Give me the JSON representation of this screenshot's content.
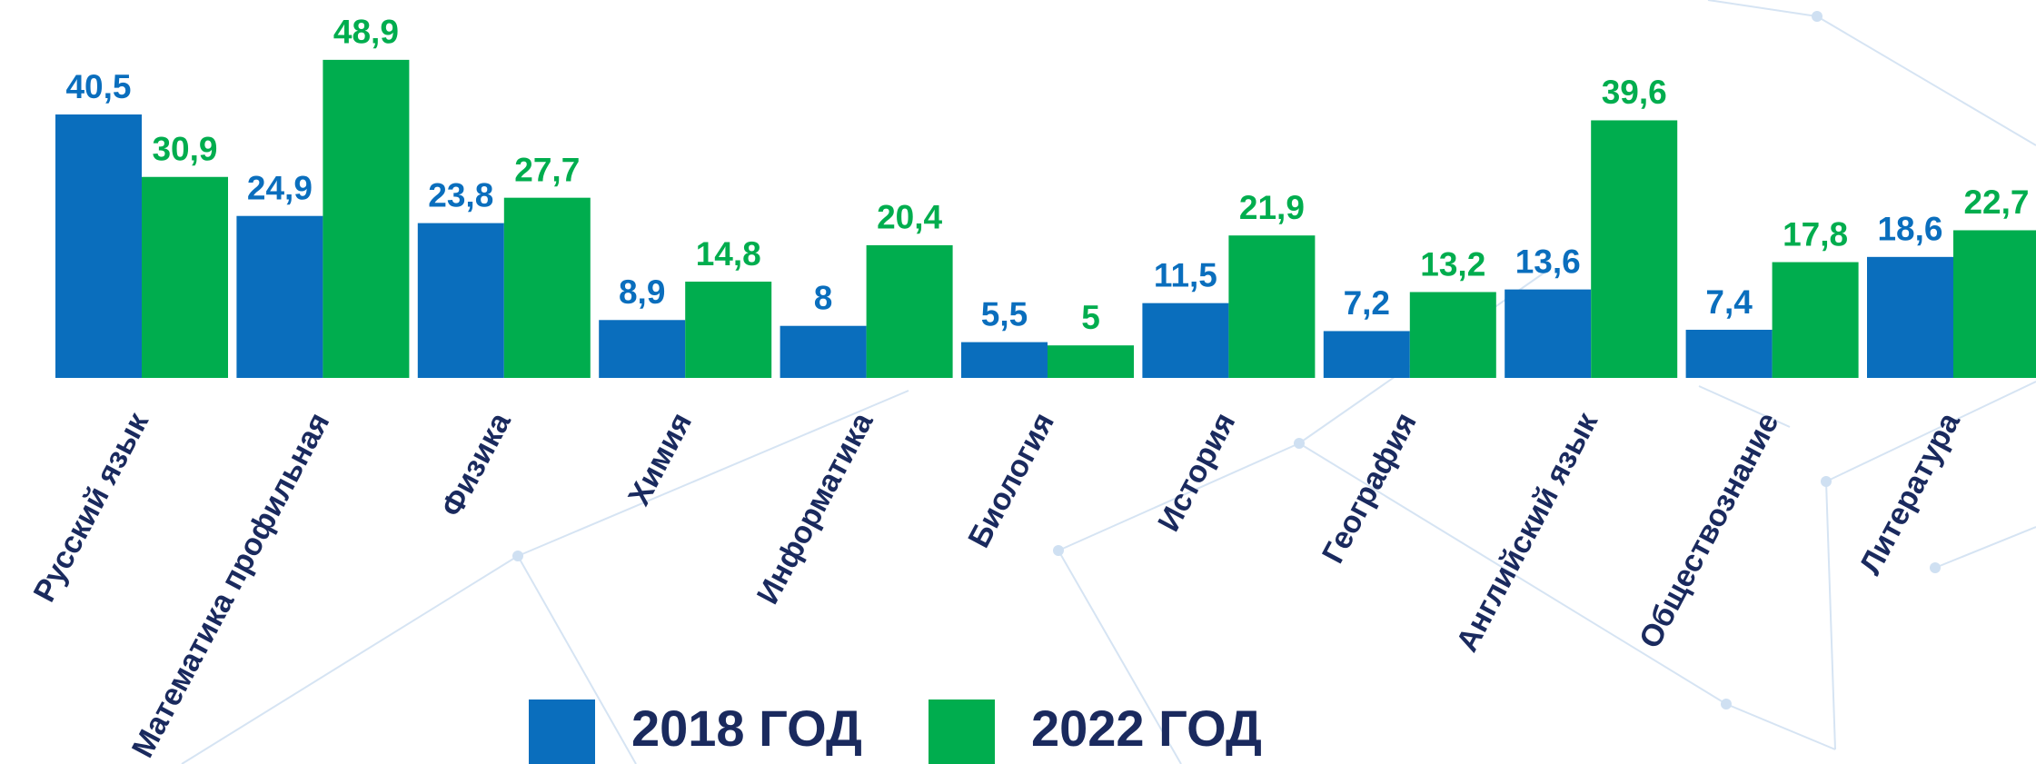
{
  "chart_data": {
    "type": "bar",
    "categories": [
      "Русский язык",
      "Математика профильная",
      "Физика",
      "Химия",
      "Информатика",
      "Биология",
      "История",
      "География",
      "Английский язык",
      "Обществознание",
      "Литература"
    ],
    "series": [
      {
        "name": "2018 ГОД",
        "color": "#0a6ebd",
        "values": [
          40.5,
          24.9,
          23.8,
          8.9,
          8,
          5.5,
          11.5,
          7.2,
          13.6,
          7.4,
          18.6
        ],
        "value_labels": [
          "40,5",
          "24,9",
          "23,8",
          "8,9",
          "8",
          "5,5",
          "11,5",
          "7,2",
          "13,6",
          "7,4",
          "18,6"
        ]
      },
      {
        "name": "2022 ГОД",
        "color": "#00ad4e",
        "values": [
          30.9,
          48.9,
          27.7,
          14.8,
          20.4,
          5,
          21.9,
          13.2,
          39.6,
          17.8,
          22.7
        ],
        "value_labels": [
          "30,9",
          "48,9",
          "27,7",
          "14,8",
          "20,4",
          "5",
          "21,9",
          "13,2",
          "39,6",
          "17,8",
          "22,7"
        ]
      }
    ]
  }
}
